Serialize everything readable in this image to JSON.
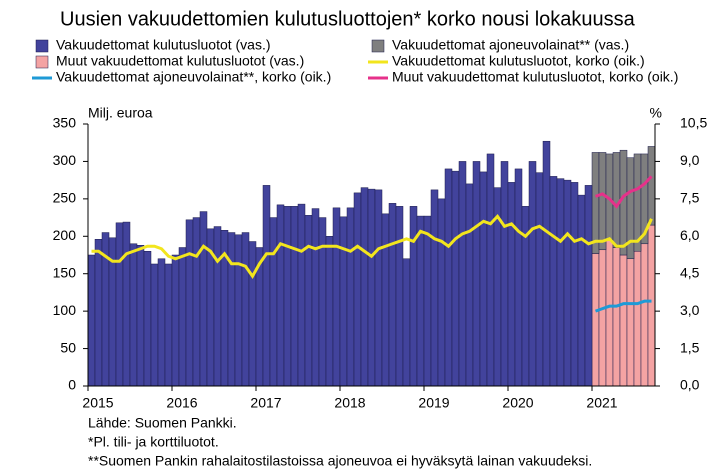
{
  "chart_data": {
    "type": "bar",
    "title": "Uusien vakuudettomien kulutusluottojen* korko nousi lokakuussa",
    "y_label": "Milj. euroa",
    "y2_label": "%",
    "categories": [
      "2015",
      null,
      null,
      null,
      null,
      null,
      null,
      null,
      null,
      null,
      null,
      null,
      "2016",
      null,
      null,
      null,
      null,
      null,
      null,
      null,
      null,
      null,
      null,
      null,
      "2017",
      null,
      null,
      null,
      null,
      null,
      null,
      null,
      null,
      null,
      null,
      null,
      "2018",
      null,
      null,
      null,
      null,
      null,
      null,
      null,
      null,
      null,
      null,
      null,
      "2019",
      null,
      null,
      null,
      null,
      null,
      null,
      null,
      null,
      null,
      null,
      null,
      "2020",
      null,
      null,
      null,
      null,
      null,
      null,
      null,
      null,
      null,
      null,
      null,
      "2021",
      null,
      null,
      null,
      null,
      null,
      null,
      null,
      null
    ],
    "ylim": [
      0,
      350
    ],
    "yticks": [
      0,
      50,
      100,
      150,
      200,
      250,
      300,
      350
    ],
    "y2lim": [
      0,
      10.5
    ],
    "y2ticks": [
      {
        "value": 0,
        "label": "0,0"
      },
      {
        "value": 1.5,
        "label": "1,5"
      },
      {
        "value": 3,
        "label": "3,0"
      },
      {
        "value": 4.5,
        "label": "4,5"
      },
      {
        "value": 6,
        "label": "6,0"
      },
      {
        "value": 7.5,
        "label": "7,5"
      },
      {
        "value": 9,
        "label": "9,0"
      },
      {
        "value": 10.5,
        "label": "10,5"
      }
    ],
    "series": [
      {
        "name": "Vakuudettomat kulutusluotot (vas.)",
        "type": "bar",
        "color": "#42439c",
        "values": [
          175,
          196,
          205,
          198,
          218,
          219,
          190,
          188,
          180,
          163,
          170,
          163,
          175,
          185,
          222,
          225,
          233,
          210,
          213,
          208,
          205,
          202,
          205,
          193,
          185,
          268,
          225,
          242,
          240,
          240,
          243,
          228,
          237,
          225,
          200,
          238,
          226,
          238,
          258,
          265,
          263,
          262,
          230,
          244,
          240,
          170,
          240,
          227,
          227,
          262,
          250,
          290,
          287,
          300,
          270,
          300,
          286,
          310,
          265,
          300,
          272,
          290,
          240,
          300,
          285,
          327,
          280,
          277,
          275,
          272,
          255,
          268,
          null,
          null,
          null,
          null,
          null,
          null,
          null,
          null,
          null
        ]
      },
      {
        "name": "Vakuudettomat ajoneuvolainat** (vas.)",
        "type": "bar",
        "color": "#7f7f7f",
        "values": [
          null,
          null,
          null,
          null,
          null,
          null,
          null,
          null,
          null,
          null,
          null,
          null,
          null,
          null,
          null,
          null,
          null,
          null,
          null,
          null,
          null,
          null,
          null,
          null,
          null,
          null,
          null,
          null,
          null,
          null,
          null,
          null,
          null,
          null,
          null,
          null,
          null,
          null,
          null,
          null,
          null,
          null,
          null,
          null,
          null,
          null,
          null,
          null,
          null,
          null,
          null,
          null,
          null,
          null,
          null,
          null,
          null,
          null,
          null,
          null,
          null,
          null,
          null,
          null,
          null,
          null,
          null,
          null,
          null,
          null,
          null,
          null,
          135,
          130,
          115,
          127,
          140,
          135,
          130,
          120,
          105
        ]
      },
      {
        "name": "Muut vakuudettomat kulutusluotot (vas.)",
        "type": "bar",
        "color": "#f4a3a3",
        "values": [
          null,
          null,
          null,
          null,
          null,
          null,
          null,
          null,
          null,
          null,
          null,
          null,
          null,
          null,
          null,
          null,
          null,
          null,
          null,
          null,
          null,
          null,
          null,
          null,
          null,
          null,
          null,
          null,
          null,
          null,
          null,
          null,
          null,
          null,
          null,
          null,
          null,
          null,
          null,
          null,
          null,
          null,
          null,
          null,
          null,
          null,
          null,
          null,
          null,
          null,
          null,
          null,
          null,
          null,
          null,
          null,
          null,
          null,
          null,
          null,
          null,
          null,
          null,
          null,
          null,
          null,
          null,
          null,
          null,
          null,
          null,
          null,
          177,
          182,
          195,
          185,
          175,
          170,
          180,
          190,
          215
        ]
      },
      {
        "name": "Vakuudettomat kulutusluotot, korko (oik.)",
        "type": "line",
        "axis": "y2",
        "color": "#f2e51d",
        "values": [
          5.4,
          5.4,
          5.2,
          5.0,
          5.0,
          5.3,
          5.4,
          5.5,
          5.6,
          5.6,
          5.5,
          5.2,
          5.1,
          5.2,
          5.3,
          5.2,
          5.6,
          5.4,
          5.0,
          5.3,
          4.9,
          4.9,
          4.8,
          4.4,
          4.9,
          5.3,
          5.3,
          5.7,
          5.6,
          5.5,
          5.4,
          5.6,
          5.5,
          5.6,
          5.6,
          5.6,
          5.5,
          5.4,
          5.6,
          5.4,
          5.2,
          5.5,
          5.6,
          5.7,
          5.8,
          5.9,
          5.8,
          6.2,
          6.1,
          5.9,
          5.8,
          5.6,
          5.9,
          6.1,
          6.2,
          6.4,
          6.6,
          6.5,
          6.8,
          6.4,
          6.5,
          6.2,
          6.0,
          6.3,
          6.4,
          6.2,
          6.0,
          5.8,
          6.1,
          5.8,
          5.9,
          5.7,
          5.8,
          5.8,
          5.9,
          5.6,
          5.6,
          5.8,
          5.8,
          6.1,
          6.7
        ]
      },
      {
        "name": "Vakuudettomat ajoneuvolainat**, korko (oik.)",
        "type": "line",
        "axis": "y2",
        "color": "#1e9ad6",
        "values": [
          null,
          null,
          null,
          null,
          null,
          null,
          null,
          null,
          null,
          null,
          null,
          null,
          null,
          null,
          null,
          null,
          null,
          null,
          null,
          null,
          null,
          null,
          null,
          null,
          null,
          null,
          null,
          null,
          null,
          null,
          null,
          null,
          null,
          null,
          null,
          null,
          null,
          null,
          null,
          null,
          null,
          null,
          null,
          null,
          null,
          null,
          null,
          null,
          null,
          null,
          null,
          null,
          null,
          null,
          null,
          null,
          null,
          null,
          null,
          null,
          null,
          null,
          null,
          null,
          null,
          null,
          null,
          null,
          null,
          null,
          null,
          null,
          3.0,
          3.1,
          3.2,
          3.2,
          3.3,
          3.3,
          3.3,
          3.4,
          3.4
        ]
      },
      {
        "name": "Muut vakuudettomat kulutusluotot, korko (oik.)",
        "type": "line",
        "axis": "y2",
        "color": "#e6318a",
        "values": [
          null,
          null,
          null,
          null,
          null,
          null,
          null,
          null,
          null,
          null,
          null,
          null,
          null,
          null,
          null,
          null,
          null,
          null,
          null,
          null,
          null,
          null,
          null,
          null,
          null,
          null,
          null,
          null,
          null,
          null,
          null,
          null,
          null,
          null,
          null,
          null,
          null,
          null,
          null,
          null,
          null,
          null,
          null,
          null,
          null,
          null,
          null,
          null,
          null,
          null,
          null,
          null,
          null,
          null,
          null,
          null,
          null,
          null,
          null,
          null,
          null,
          null,
          null,
          null,
          null,
          null,
          null,
          null,
          null,
          null,
          null,
          null,
          7.6,
          7.7,
          7.5,
          7.2,
          7.6,
          7.8,
          7.9,
          8.1,
          8.4
        ]
      }
    ],
    "notes": [
      "Lähde: Suomen Pankki.",
      "*Pl. tili- ja korttiluotot.",
      "**Suomen Pankin rahalaitostilastoissa ajoneuvoa ei hyväksytä lainan vakuudeksi."
    ]
  }
}
